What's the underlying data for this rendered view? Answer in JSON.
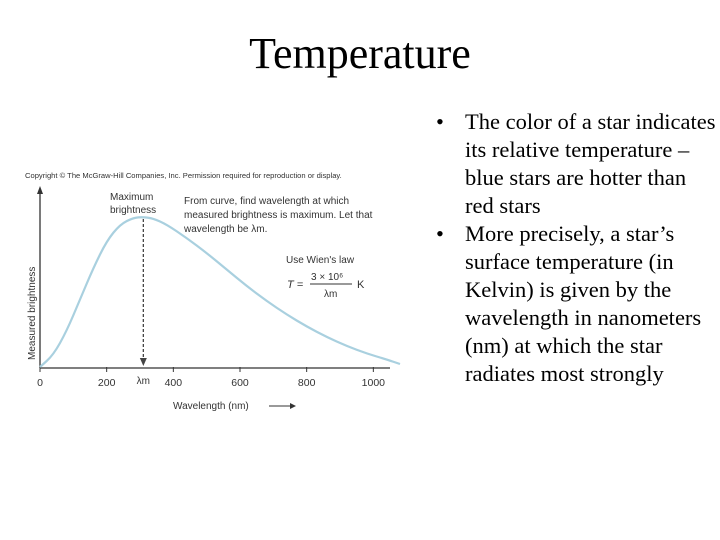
{
  "title": "Temperature",
  "figure": {
    "copyright": "Copyright © The McGraw-Hill Companies, Inc. Permission required for reproduction or display.",
    "peak_label_1": "Maximum",
    "peak_label_2": "brightness",
    "note_lines": [
      "From curve, find wavelength at which",
      "measured brightness is maximum. Let that",
      "wavelength be λm."
    ],
    "law_label": "Use Wien's law",
    "formula_lhs": "T =",
    "formula_num": "3 × 10⁶",
    "formula_den": "λm",
    "formula_unit": "K",
    "lambda_marker": "λm",
    "colors": {
      "curve": "#a9d0df",
      "axis": "#333333",
      "marker": "#444444"
    }
  },
  "chart_data": {
    "type": "line",
    "xlabel": "Wavelength (nm)",
    "ylabel": "Measured brightness",
    "x_ticks": [
      "0",
      "200",
      "400",
      "600",
      "800",
      "1000"
    ],
    "xlim": [
      0,
      1080
    ],
    "peak_x": 310,
    "series": [
      {
        "x": [
          0,
          40,
          80,
          120,
          160,
          200,
          240,
          280,
          310,
          340,
          380,
          440,
          500,
          560,
          620,
          680,
          740,
          800,
          860,
          920,
          980,
          1040,
          1080
        ],
        "values": [
          0.0,
          0.08,
          0.24,
          0.45,
          0.66,
          0.84,
          0.95,
          0.995,
          1.0,
          0.99,
          0.95,
          0.86,
          0.76,
          0.65,
          0.54,
          0.44,
          0.35,
          0.27,
          0.2,
          0.14,
          0.09,
          0.05,
          0.02
        ]
      }
    ]
  },
  "bullets": [
    "The color of a star indicates its relative temperature – blue stars are hotter than red stars",
    "More precisely, a star’s surface temperature (in Kelvin) is given by the wavelength in nanometers (nm) at which the star radiates most strongly"
  ],
  "bullet_glyph": "•"
}
